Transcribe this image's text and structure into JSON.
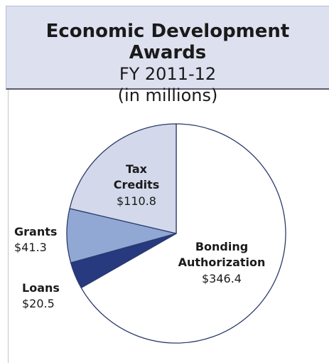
{
  "chart_data": {
    "type": "pie",
    "title": "Economic Development Awards",
    "subtitle_lines": [
      "FY 2011-12",
      "(in millions)"
    ],
    "slices": [
      {
        "label": "Bonding Authorization",
        "label_lines": [
          "Bonding",
          "Authorization"
        ],
        "value": 346.4,
        "value_text": "$346.4",
        "color": "#ffffff"
      },
      {
        "label": "Loans",
        "label_lines": [
          "Loans"
        ],
        "value": 20.5,
        "value_text": "$20.5",
        "color": "#27397f"
      },
      {
        "label": "Grants",
        "label_lines": [
          "Grants"
        ],
        "value": 41.3,
        "value_text": "$41.3",
        "color": "#91a8d4"
      },
      {
        "label": "Tax Credits",
        "label_lines": [
          "Tax",
          "Credits"
        ],
        "value": 110.8,
        "value_text": "$110.8",
        "color": "#d3d9ea"
      }
    ],
    "start_angle_deg": 0,
    "direction": "clockwise",
    "edge_color": "#2b3a6b"
  }
}
